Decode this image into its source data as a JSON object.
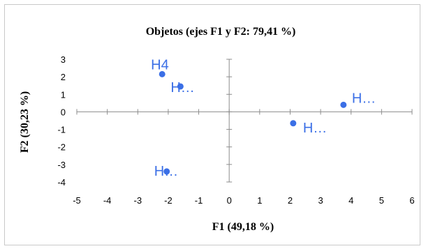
{
  "chart_data": {
    "type": "scatter",
    "title": "Objetos (ejes F1 y F2: 79,41 %)",
    "xlabel": "F1 (49,18 %)",
    "ylabel": "F2 (30,23 %)",
    "xlim": [
      -5,
      6
    ],
    "ylim": [
      -4,
      3
    ],
    "xticks": [
      "-5",
      "-4",
      "-3",
      "-2",
      "-1",
      "0",
      "1",
      "2",
      "3",
      "4",
      "5",
      "6"
    ],
    "yticks": [
      "-4",
      "-3",
      "-2",
      "-1",
      "0",
      "1",
      "2",
      "3"
    ],
    "point_color": "#3b6fe6",
    "points": [
      {
        "label": "H4",
        "x": -2.2,
        "y": 2.15
      },
      {
        "label": "H…",
        "x": -1.6,
        "y": 1.45
      },
      {
        "label": "H…",
        "x": 3.75,
        "y": 0.4
      },
      {
        "label": "H…",
        "x": 2.1,
        "y": -0.65
      },
      {
        "label": "H…",
        "x": -2.05,
        "y": -3.4
      }
    ]
  }
}
